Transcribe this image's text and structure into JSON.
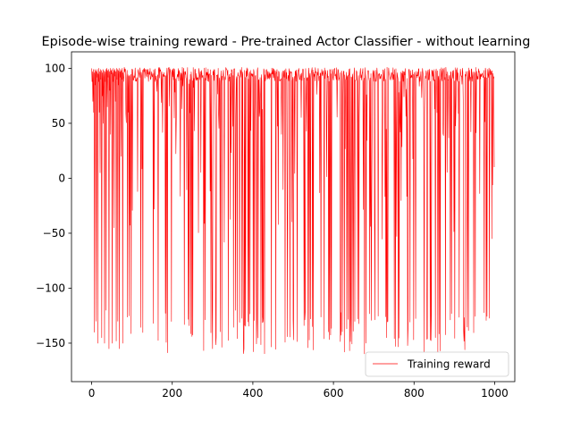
{
  "chart_data": {
    "type": "line",
    "title": "Episode-wise training reward - Pre-trained Actor Classifier - without learning",
    "xlabel": "",
    "ylabel": "",
    "xlim": [
      -50,
      1050
    ],
    "ylim": [
      -185,
      115
    ],
    "xticks": [
      0,
      200,
      400,
      600,
      800,
      1000
    ],
    "yticks": [
      -150,
      -100,
      -50,
      0,
      50,
      100
    ],
    "grid": false,
    "legend_position": "lower right",
    "series": [
      {
        "name": "Training reward",
        "color": "#ff0000",
        "episodes": 1000,
        "values_approx": [
          100,
          88,
          97,
          70,
          99,
          60,
          96,
          -140,
          99,
          85,
          98,
          -130,
          97,
          92,
          99,
          -150,
          95,
          88,
          100,
          60,
          97,
          5,
          99,
          90,
          98,
          -145,
          96,
          75,
          99,
          50,
          98,
          92,
          -150,
          97,
          88,
          99,
          -120,
          96,
          100,
          65,
          98,
          92,
          99,
          -155,
          97,
          80,
          100,
          40,
          98,
          95,
          99,
          -150,
          96,
          88,
          100,
          -45,
          98,
          93,
          99,
          70,
          97,
          -148,
          100,
          90,
          99,
          -130,
          98,
          85,
          100,
          -155,
          97,
          92,
          99,
          20,
          98,
          90,
          100,
          -150,
          96,
          88
        ],
        "pattern": "mostly 85-100 with frequent spikes down to between -160 and 0"
      }
    ]
  },
  "legend": {
    "label": "Training reward"
  }
}
